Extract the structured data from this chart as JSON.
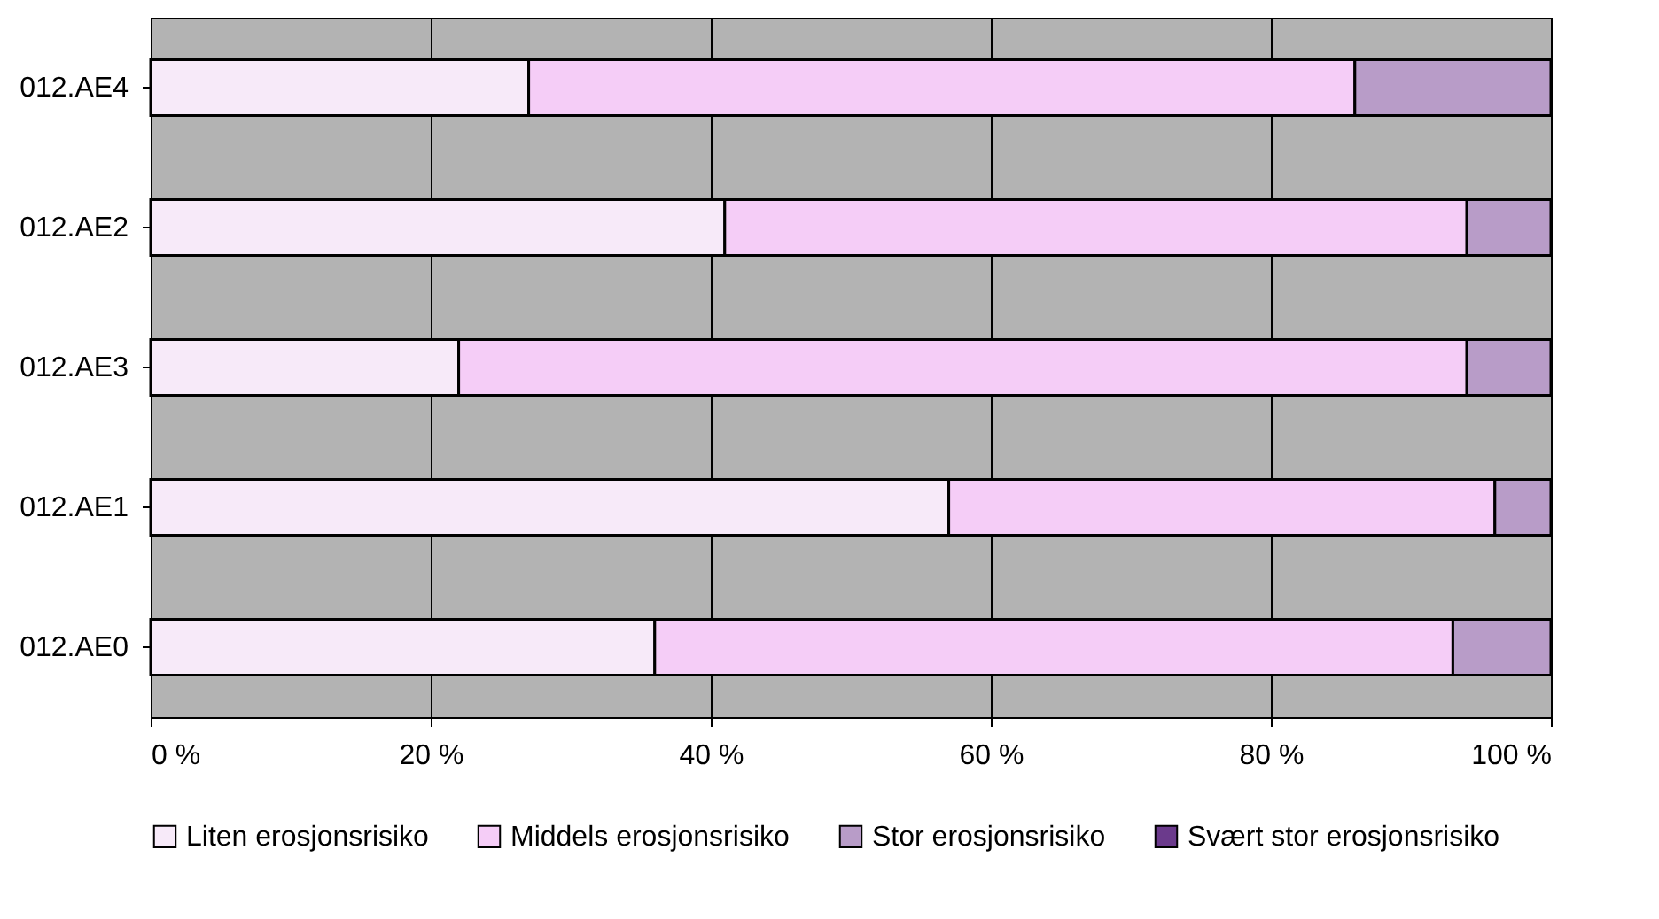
{
  "chart_data": {
    "type": "bar",
    "orientation": "horizontal",
    "stacked": true,
    "categories": [
      "012.AE4",
      "012.AE2",
      "012.AE3",
      "012.AE1",
      "012.AE0"
    ],
    "series": [
      {
        "name": "Liten erosjonsrisiko",
        "color": "#f7eaf9",
        "values": [
          27,
          41,
          22,
          57,
          36
        ]
      },
      {
        "name": "Middels erosjonsrisiko",
        "color": "#f5cdf7",
        "values": [
          59,
          53,
          72,
          39,
          57
        ]
      },
      {
        "name": "Stor erosjonsrisiko",
        "color": "#b89cc8",
        "values": [
          14,
          6,
          6,
          4,
          7
        ]
      },
      {
        "name": "Svært stor erosjonsrisiko",
        "color": "#6b3a8c",
        "values": [
          0,
          0,
          0,
          0,
          0
        ]
      }
    ],
    "xlim": [
      0,
      100
    ],
    "xticks": [
      {
        "value": 0,
        "label": "0 %"
      },
      {
        "value": 20,
        "label": "20 %"
      },
      {
        "value": 40,
        "label": "40 %"
      },
      {
        "value": 60,
        "label": "60 %"
      },
      {
        "value": 80,
        "label": "80 %"
      },
      {
        "value": 100,
        "label": "100 %"
      }
    ],
    "grid": "x",
    "legend": "bottom"
  }
}
